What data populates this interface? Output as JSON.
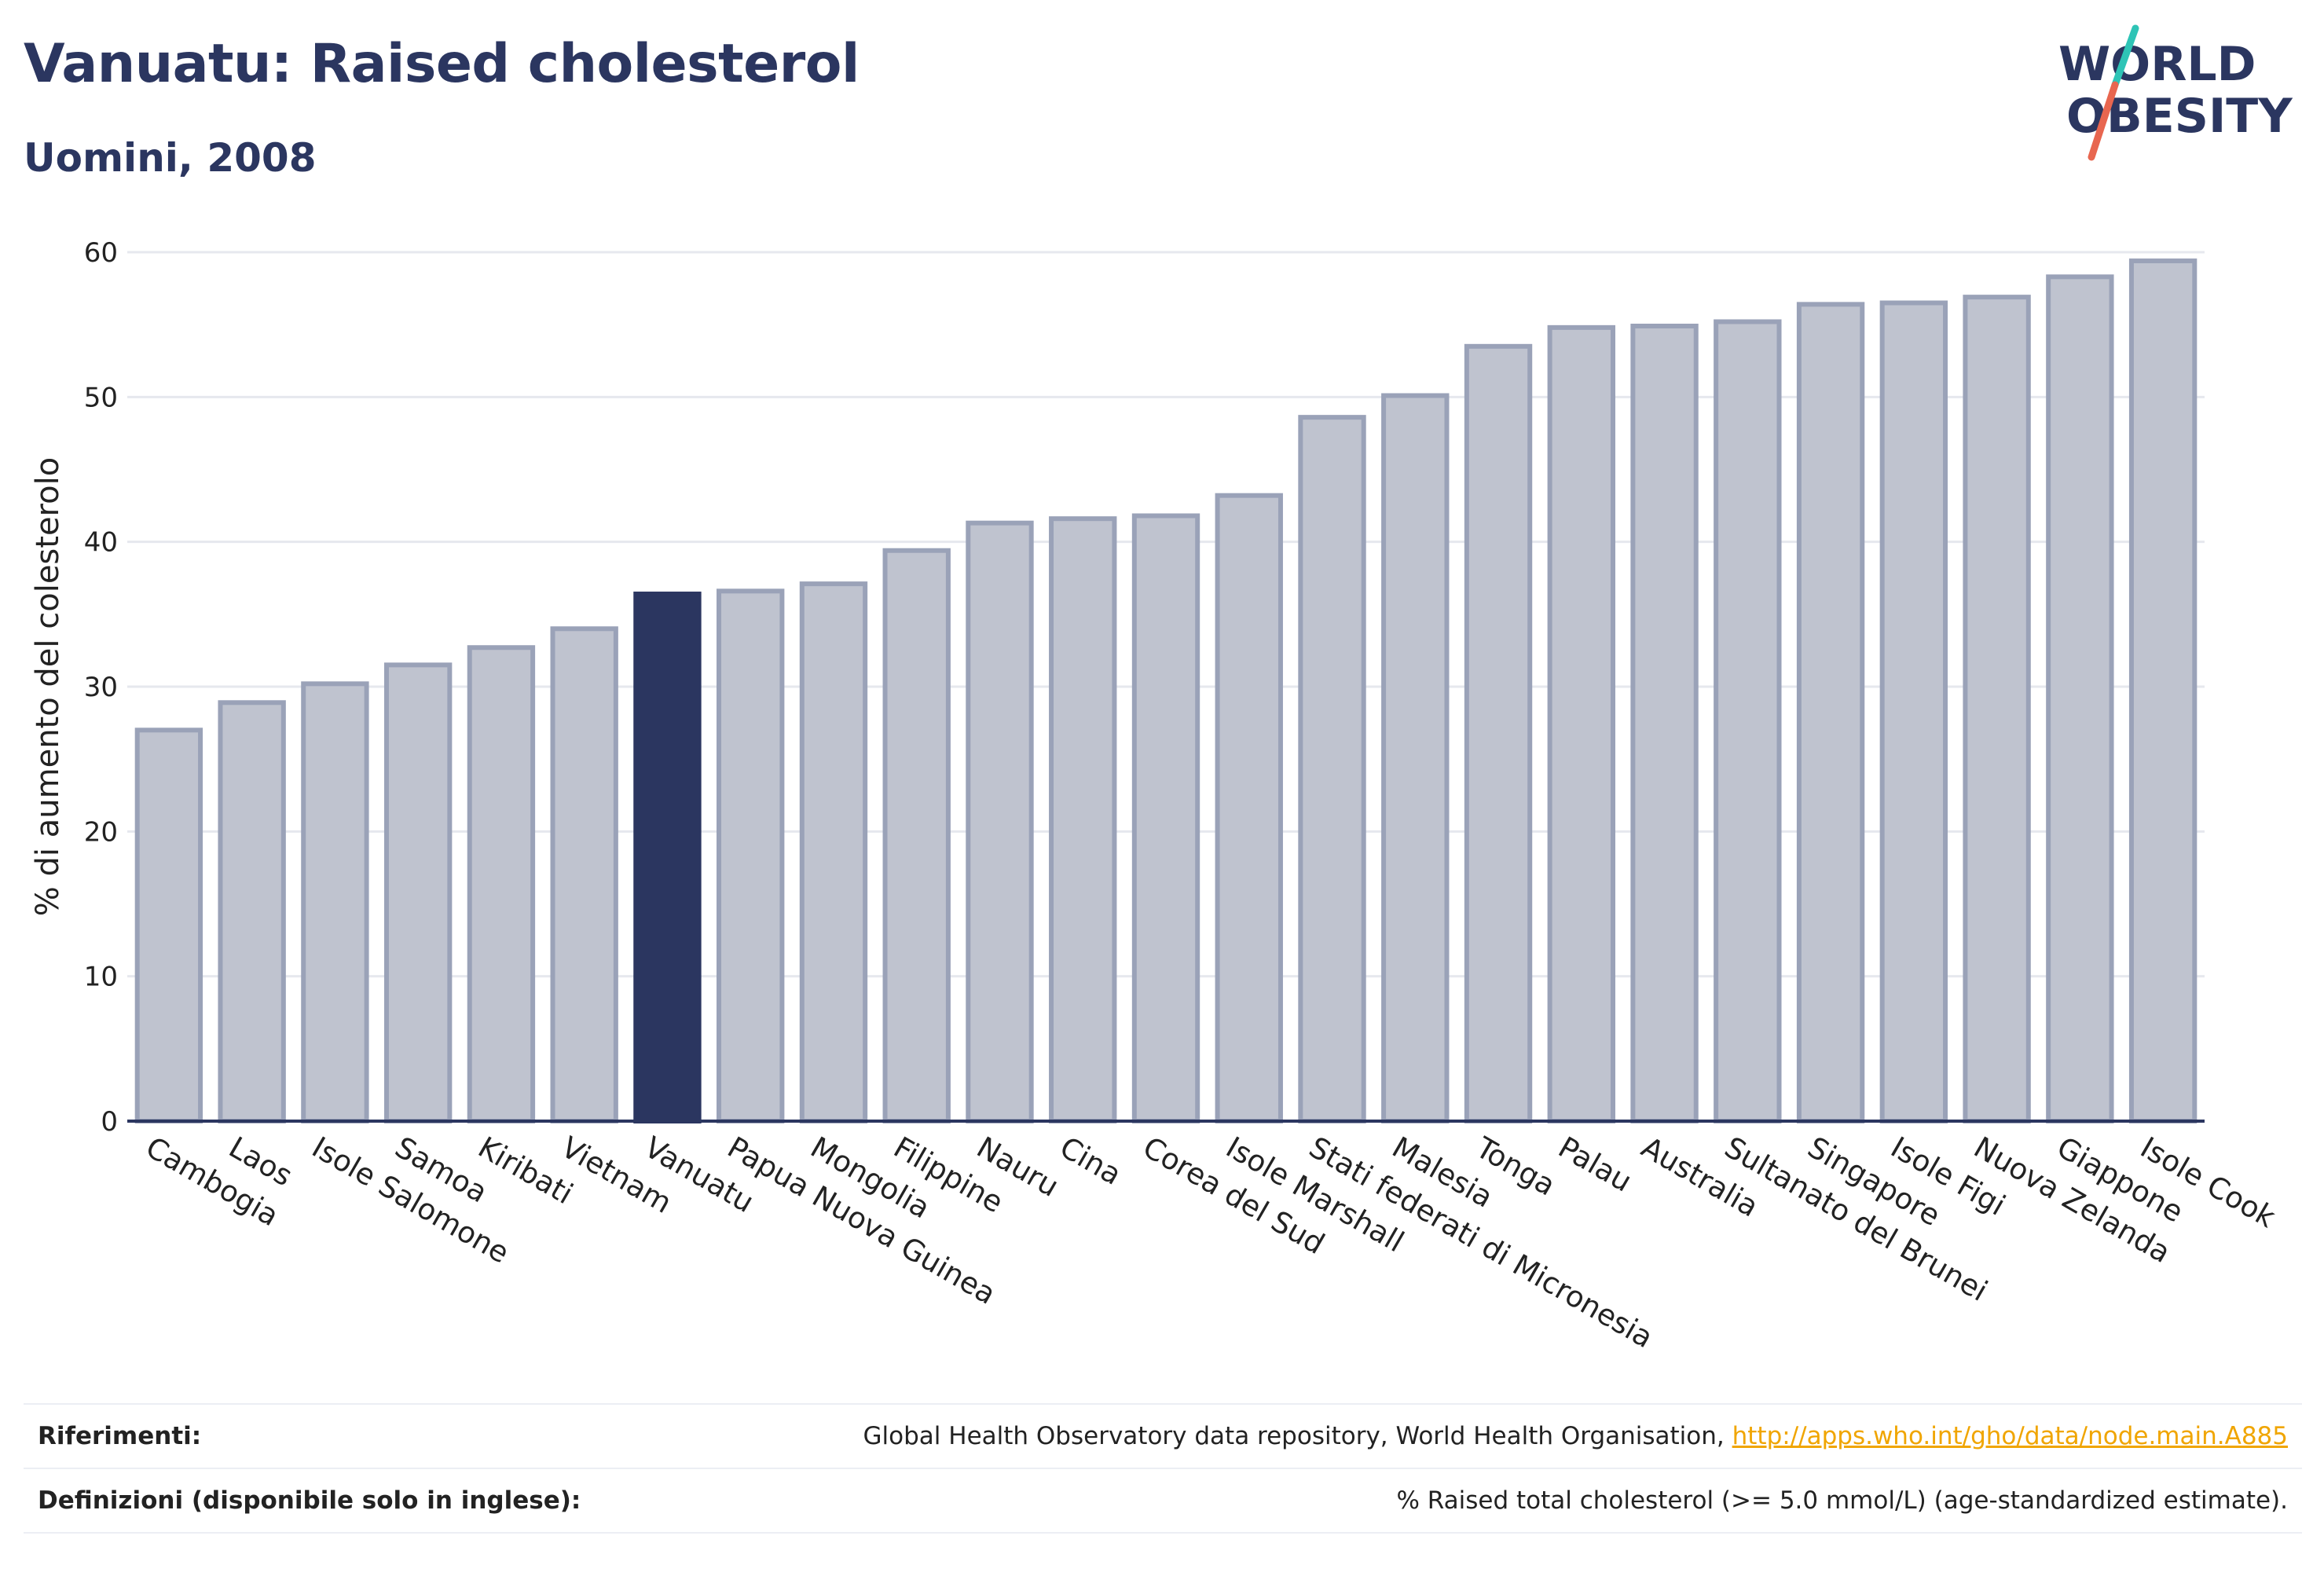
{
  "header": {
    "title": "Vanuatu: Raised cholesterol",
    "subtitle": "Uomini, 2008"
  },
  "logo": {
    "line1": "WORLD",
    "line2": "OBESITY",
    "colors": {
      "text": "#2b3660",
      "slash_top": "#2ec4b6",
      "slash_bottom": "#e8664f"
    }
  },
  "colors": {
    "highlight": "#2b3660",
    "bar_fill": "#bfc3cf",
    "bar_stroke": "#9aa2b8",
    "baseline": "#2b3660",
    "grid": "#e6e8ee"
  },
  "chart_data": {
    "type": "bar",
    "ylabel": "% di aumento del colesterolo",
    "xlabel": "",
    "ylim": [
      0,
      60
    ],
    "yticks": [
      0,
      10,
      20,
      30,
      40,
      50,
      60
    ],
    "grid": true,
    "highlight": "Vanuatu",
    "categories": [
      "Cambogia",
      "Laos",
      "Isole Salomone",
      "Samoa",
      "Kiribati",
      "Vietnam",
      "Vanuatu",
      "Papua Nuova Guinea",
      "Mongolia",
      "Filippine",
      "Nauru",
      "Cina",
      "Corea del Sud",
      "Isole Marshall",
      "Stati federati di Micronesia",
      "Malesia",
      "Tonga",
      "Palau",
      "Australia",
      "Sultanato del Brunei",
      "Singapore",
      "Isole Figi",
      "Nuova Zelanda",
      "Giappone",
      "Isole Cook"
    ],
    "values": [
      27.0,
      28.9,
      30.2,
      31.5,
      32.7,
      34.0,
      36.4,
      36.6,
      37.1,
      39.4,
      41.3,
      41.6,
      41.8,
      43.2,
      48.6,
      50.1,
      53.5,
      54.8,
      54.9,
      55.2,
      56.4,
      56.5,
      56.9,
      58.3,
      59.4
    ]
  },
  "footer": {
    "references_label": "Riferimenti:",
    "references_text": "Global Health Observatory data repository, World Health Organisation, ",
    "references_link": "http://apps.who.int/gho/data/node.main.A885",
    "definitions_label": "Definizioni (disponibile solo in inglese):",
    "definitions_text": "% Raised total cholesterol (>= 5.0 mmol/L) (age-standardized estimate)."
  }
}
